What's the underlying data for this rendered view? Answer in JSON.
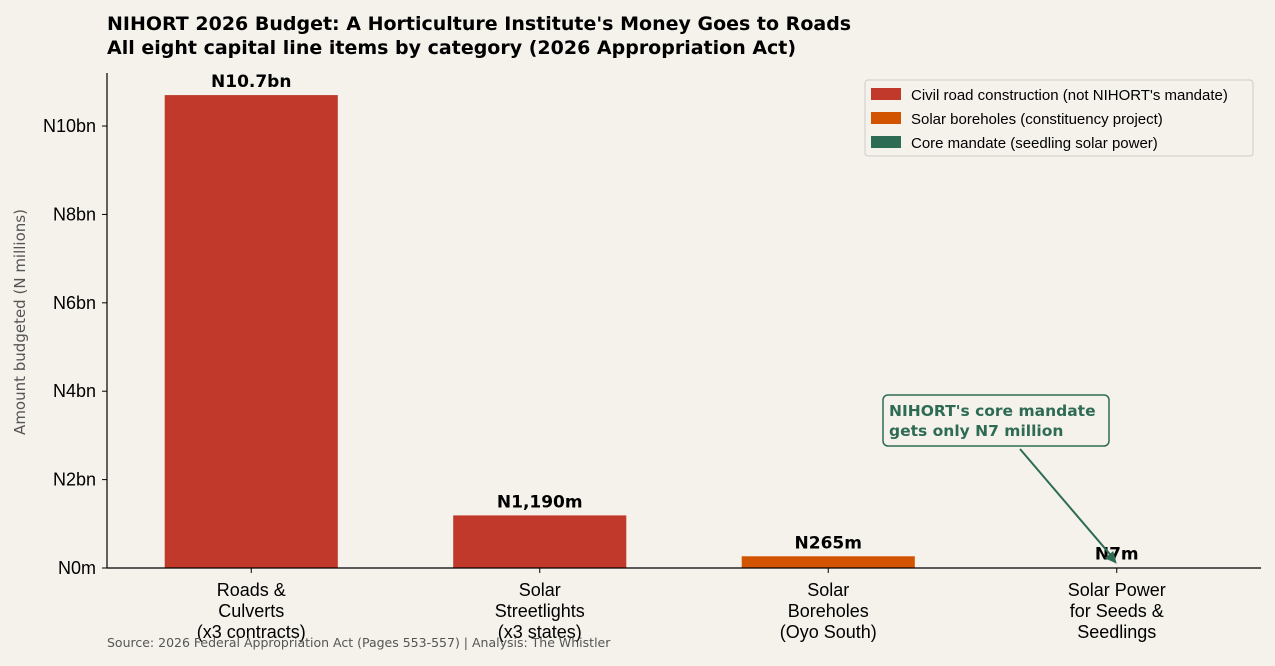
{
  "chart_data": {
    "type": "bar",
    "title": "NIHORT 2026 Budget: A Horticulture Institute's Money Goes to Roads",
    "subtitle": "All eight capital line items by category (2026 Appropriation Act)",
    "xlabel": "",
    "ylabel": "Amount budgeted (N millions)",
    "ylim": [
      0,
      11200
    ],
    "yticks": [
      0,
      2000,
      4000,
      6000,
      8000,
      10000
    ],
    "ytick_labels": [
      "N0m",
      "N2bn",
      "N4bn",
      "N6bn",
      "N8bn",
      "N10bn"
    ],
    "categories": [
      [
        "Roads &",
        "Culverts",
        "(x3 contracts)"
      ],
      [
        "Solar",
        "Streetlights",
        "(x3 states)"
      ],
      [
        "Solar",
        "Boreholes",
        "(Oyo South)"
      ],
      [
        "Solar Power",
        "for Seeds &",
        "Seedlings"
      ]
    ],
    "values": [
      10700,
      1190,
      265,
      7
    ],
    "value_labels": [
      "N10.7bn",
      "N1,190m",
      "N265m",
      "N7m"
    ],
    "bar_colors": [
      "#c0392b",
      "#c0392b",
      "#d35400",
      "#2e6b55"
    ],
    "legend": {
      "placement": "top-right",
      "entries": [
        {
          "label": "Civil road construction (not NIHORT's mandate)",
          "color": "#c0392b"
        },
        {
          "label": "Solar boreholes (constituency project)",
          "color": "#d35400"
        },
        {
          "label": "Core mandate (seedling solar power)",
          "color": "#2e6b55"
        }
      ]
    },
    "annotation": {
      "lines": [
        "NIHORT's core mandate",
        "gets only N7 million"
      ],
      "target_category_index": 3,
      "color": "#2e6b55"
    },
    "grid": false
  },
  "source": "Source: 2026 Federal Appropriation Act (Pages 553-557)  |  Analysis: The Whistler"
}
